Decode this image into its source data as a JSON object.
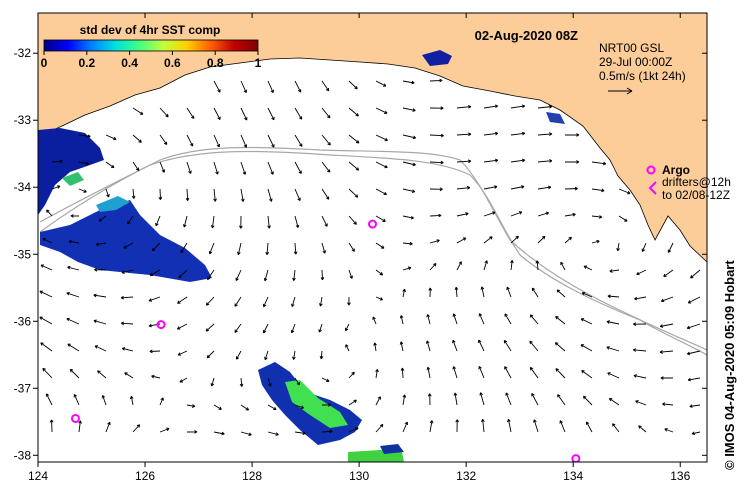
{
  "map": {
    "date_label": "02-Aug-2020 08Z",
    "colorbar": {
      "title": "std dev of 4hr SST comp",
      "tick_labels": [
        "0",
        "0.2",
        "0.4",
        "0.6",
        "0.8",
        "1"
      ],
      "stops": [
        "#00007f",
        "#0000ff",
        "#0080ff",
        "#00e0e0",
        "#40ff80",
        "#c0ff40",
        "#ffd000",
        "#ff6000",
        "#c00000",
        "#800000"
      ]
    },
    "current_legend": {
      "line1": "NRT00 GSL",
      "line2": "29-Jul 00:00Z",
      "line3": "0.5m/s (1kt 24h)"
    },
    "argo_legend": {
      "argo_label": "Argo",
      "drifters_line1": "drifters@12h",
      "drifters_line2": "to 02/08-12Z"
    },
    "x_axis": {
      "tick_labels": [
        "124",
        "126",
        "128",
        "130",
        "132",
        "134",
        "136"
      ],
      "tick_values": [
        124,
        126,
        128,
        130,
        132,
        134,
        136
      ]
    },
    "y_axis": {
      "tick_labels": [
        "-32",
        "-33",
        "-34",
        "-35",
        "-36",
        "-37",
        "-38"
      ],
      "tick_values": [
        -32,
        -33,
        -34,
        -35,
        -36,
        -37,
        -38
      ]
    },
    "extent": {
      "lon_min": 124,
      "lon_max": 136.5,
      "lat_min": -38.1,
      "lat_max": -31.4
    },
    "argo_floats": [
      {
        "lon": 130.25,
        "lat": -34.55
      },
      {
        "lon": 126.3,
        "lat": -36.05
      },
      {
        "lon": 124.7,
        "lat": -37.45
      },
      {
        "lon": 134.05,
        "lat": -38.05
      }
    ],
    "credit": "© IMOS 04-Aug-2020 05:09 Hobart",
    "colors": {
      "land": "#fccc99",
      "ocean": "#ffffff",
      "argo": "#ff00ff",
      "contour": "#a8a8a8",
      "arrow": "#000000"
    }
  }
}
